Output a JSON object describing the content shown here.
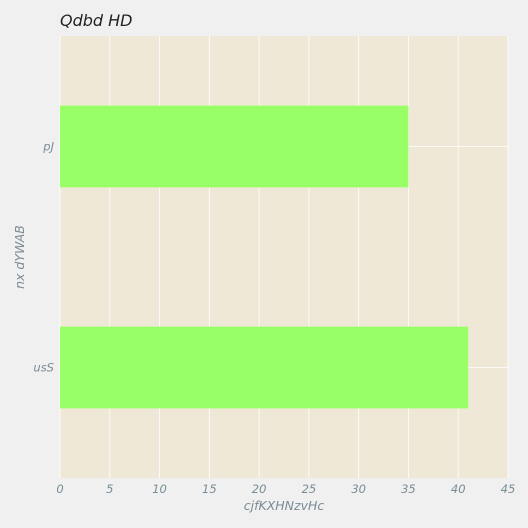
{
  "chart_data": {
    "type": "bar",
    "orientation": "horizontal",
    "title": "Qdbd HD",
    "xlabel": "cjfKXHNzvHc",
    "ylabel": "nx dYWAB",
    "categories": [
      "usS",
      "pJ"
    ],
    "values": [
      41,
      35
    ],
    "xlim": [
      0,
      45
    ],
    "xticks": [
      0,
      5,
      10,
      15,
      20,
      25,
      30,
      35,
      40,
      45
    ],
    "xtick_labels": [
      "0",
      "5",
      "10",
      "15",
      "20",
      "25",
      "30",
      "35",
      "40",
      "45"
    ],
    "grid": true,
    "legend": "none",
    "colors": {
      "bar": "#99ff66",
      "plot_background": "#efe8d7",
      "figure_background": "#f0f0f0",
      "grid": "#ffffff",
      "text": "#7a8c95",
      "title": "#222222"
    }
  }
}
